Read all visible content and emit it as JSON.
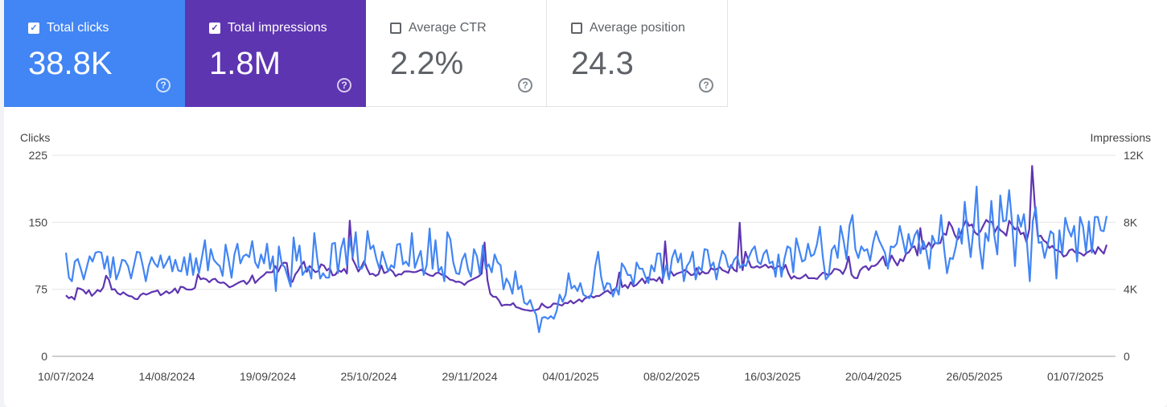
{
  "cards": [
    {
      "label": "Total clicks",
      "value": "38.8K",
      "checked": true
    },
    {
      "label": "Total impressions",
      "value": "1.8M",
      "checked": true
    },
    {
      "label": "Average CTR",
      "value": "2.2%",
      "checked": false
    },
    {
      "label": "Average position",
      "value": "24.3",
      "checked": false
    }
  ],
  "help_glyph": "?",
  "check_glyph": "✓",
  "colors": {
    "clicks": "#4285f4",
    "impressions": "#5e35b1",
    "grid": "#e6e6e6",
    "baseline": "#9e9e9e"
  },
  "chart_data": {
    "type": "line",
    "ylabel_left": "Clicks",
    "ylabel_right": "Impressions",
    "yticks_left": [
      "0",
      "75",
      "150",
      "225"
    ],
    "yticks_right": [
      "0",
      "4K",
      "8K",
      "12K"
    ],
    "ylim_left": [
      0,
      225
    ],
    "ylim_right": [
      0,
      12000
    ],
    "xlim": [
      "2024-07-10",
      "2025-07-07"
    ],
    "xticks": [
      "10/07/2024",
      "14/08/2024",
      "19/09/2024",
      "25/10/2024",
      "29/11/2024",
      "04/01/2025",
      "08/02/2025",
      "16/03/2025",
      "20/04/2025",
      "26/05/2025",
      "01/07/2025"
    ],
    "grid": true,
    "legend": "none",
    "series": [
      {
        "name": "Clicks",
        "axis": "left",
        "values": [
          116,
          88,
          84,
          106,
          109,
          98,
          86,
          99,
          112,
          106,
          116,
          117,
          116,
          98,
          112,
          88,
          111,
          86,
          95,
          108,
          107,
          101,
          87,
          102,
          117,
          116,
          101,
          84,
          101,
          111,
          104,
          100,
          113,
          99,
          105,
          112,
          95,
          108,
          96,
          95,
          111,
          91,
          115,
          91,
          110,
          93,
          111,
          130,
          96,
          120,
          108,
          104,
          101,
          90,
          125,
          108,
          88,
          114,
          126,
          104,
          112,
          114,
          111,
          129,
          105,
          99,
          114,
          104,
          126,
          98,
          112,
          73,
          123,
          103,
          100,
          89,
          78,
          133,
          107,
          124,
          91,
          96,
          100,
          87,
          138,
          109,
          87,
          93,
          88,
          88,
          126,
          127,
          93,
          120,
          132,
          102,
          132,
          111,
          139,
          100,
          98,
          104,
          140,
          120,
          124,
          109,
          98,
          117,
          106,
          95,
          102,
          99,
          125,
          126,
          103,
          106,
          101,
          138,
          99,
          109,
          118,
          91,
          102,
          143,
          98,
          130,
          95,
          100,
          84,
          139,
          131,
          105,
          93,
          92,
          108,
          115,
          97,
          89,
          120,
          112,
          92,
          124,
          98,
          103,
          94,
          114,
          105,
          102,
          75,
          87,
          81,
          70,
          95,
          75,
          79,
          60,
          58,
          63,
          53,
          47,
          27,
          43,
          44,
          42,
          45,
          42,
          51,
          69,
          61,
          69,
          93,
          76,
          79,
          73,
          82,
          69,
          67,
          65,
          72,
          100,
          117,
          89,
          74,
          82,
          81,
          67,
          77,
          69,
          104,
          99,
          91,
          91,
          80,
          105,
          98,
          98,
          89,
          82,
          102,
          95,
          115,
          115,
          87,
          102,
          86,
          110,
          119,
          105,
          115,
          84,
          101,
          106,
          117,
          86,
          100,
          96,
          120,
          119,
          100,
          105,
          86,
          104,
          118,
          113,
          100,
          99,
          108,
          112,
          99,
          103,
          101,
          111,
          119,
          123,
          106,
          103,
          115,
          119,
          104,
          106,
          89,
          114,
          89,
          109,
          123,
          121,
          94,
          132,
          119,
          106,
          108,
          126,
          112,
          114,
          125,
          145,
          111,
          86,
          90,
          119,
          124,
          110,
          146,
          130,
          109,
          146,
          158,
          120,
          110,
          123,
          118,
          120,
          107,
          127,
          140,
          130,
          123,
          116,
          98,
          123,
          122,
          126,
          146,
          131,
          115,
          137,
          121,
          135,
          141,
          115,
          129,
          118,
          98,
          135,
          127,
          126,
          158,
          121,
          93,
          110,
          109,
          123,
          143,
          126,
          173,
          139,
          111,
          144,
          190,
          124,
          98,
          138,
          129,
          174,
          135,
          114,
          180,
          151,
          152,
          186,
          149,
          101,
          158,
          145,
          159,
          129,
          84,
          151,
          167,
          127,
          128,
          110,
          124,
          140,
          137,
          87,
          141,
          115,
          155,
          142,
          134,
          146,
          106,
          156,
          145,
          117,
          151,
          116,
          156,
          156,
          141,
          140,
          157
        ]
      },
      {
        "name": "Impressions",
        "axis": "right",
        "values": [
          3640,
          3470,
          3550,
          3390,
          4070,
          4030,
          3950,
          3740,
          3950,
          3610,
          3760,
          3960,
          3870,
          4110,
          4810,
          4560,
          3980,
          4010,
          3770,
          3680,
          3820,
          3690,
          3600,
          3570,
          3430,
          3410,
          3660,
          3760,
          3680,
          3760,
          3840,
          3880,
          3930,
          3650,
          3750,
          3890,
          3760,
          3860,
          4050,
          3780,
          4150,
          4120,
          4000,
          3980,
          3990,
          4090,
          4890,
          4600,
          4650,
          4590,
          4420,
          4580,
          4630,
          4440,
          4380,
          4410,
          4280,
          4120,
          4180,
          4280,
          4380,
          4460,
          4510,
          4310,
          4490,
          4830,
          4380,
          4560,
          4720,
          4850,
          5020,
          5010,
          5020,
          5390,
          5050,
          5420,
          5590,
          5570,
          4500,
          4440,
          4890,
          5110,
          5420,
          5650,
          5040,
          5390,
          5210,
          5020,
          5090,
          5490,
          5410,
          5120,
          5270,
          4830,
          4870,
          5140,
          5040,
          5220,
          4940,
          8100,
          5790,
          5460,
          5060,
          5330,
          5680,
          5240,
          4890,
          4930,
          4800,
          4900,
          5430,
          4970,
          5040,
          5200,
          5060,
          4780,
          4900,
          4880,
          5060,
          5070,
          5060,
          5020,
          5030,
          5100,
          5170,
          5010,
          4910,
          4830,
          4790,
          4960,
          4990,
          4870,
          4860,
          4720,
          4570,
          4540,
          4440,
          4460,
          4390,
          4260,
          4440,
          4520,
          4610,
          4690,
          4780,
          4940,
          6790,
          4570,
          3730,
          3560,
          3550,
          3340,
          3020,
          3070,
          3080,
          3060,
          3180,
          2940,
          2890,
          2820,
          2770,
          2750,
          2710,
          2740,
          2770,
          2830,
          3150,
          2990,
          2900,
          2950,
          3150,
          3140,
          3090,
          3030,
          3190,
          3170,
          3320,
          3160,
          3270,
          3400,
          3260,
          3460,
          3520,
          3620,
          3510,
          3600,
          3600,
          3720,
          3850,
          3920,
          3750,
          3980,
          4060,
          5000,
          4130,
          4260,
          4070,
          4420,
          4170,
          4270,
          4460,
          4640,
          4360,
          4710,
          4580,
          4600,
          4490,
          4720,
          4370,
          6860,
          4820,
          5070,
          4810,
          4930,
          4990,
          5040,
          5170,
          5020,
          4850,
          4880,
          5260,
          4880,
          5060,
          4950,
          4970,
          5260,
          5170,
          5210,
          5330,
          5140,
          5070,
          4980,
          5450,
          5160,
          5060,
          7980,
          5140,
          6240,
          5750,
          5320,
          5300,
          5380,
          5290,
          5370,
          5470,
          5290,
          5370,
          5190,
          5340,
          5400,
          5140,
          5460,
          4960,
          4630,
          4790,
          4660,
          4640,
          4740,
          4880,
          4660,
          4660,
          4660,
          4620,
          4820,
          4990,
          4940,
          4830,
          4960,
          5220,
          5200,
          5120,
          4910,
          5270,
          5950,
          4880,
          4680,
          4660,
          5130,
          5310,
          5380,
          5150,
          5390,
          5390,
          5510,
          5730,
          5960,
          5420,
          5560,
          6020,
          5700,
          5420,
          5800,
          5680,
          6120,
          6210,
          6490,
          6560,
          6020,
          7650,
          6400,
          6490,
          6790,
          6460,
          6750,
          6750,
          6760,
          7340,
          7250,
          8020,
          7740,
          7250,
          6970,
          7260,
          7760,
          8140,
          7790,
          7870,
          7400,
          7260,
          7480,
          7810,
          8140,
          7990,
          8040,
          7410,
          7750,
          7510,
          7390,
          7200,
          8090,
          7830,
          7570,
          7720,
          7290,
          7380,
          6830,
          7590,
          11360,
          8830,
          7150,
          7200,
          6910,
          6800,
          6460,
          6590,
          6370,
          6300,
          6220,
          5950,
          6040,
          6330,
          6390,
          6200,
          6210,
          6140,
          6010,
          6180,
          6270,
          6420,
          6110,
          6520,
          6310,
          6130,
          6660
        ]
      }
    ]
  }
}
